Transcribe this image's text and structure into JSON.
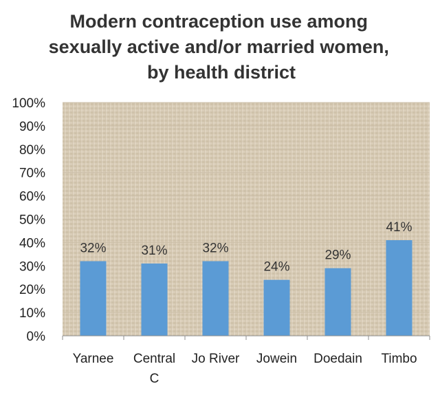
{
  "chart_data": {
    "type": "bar",
    "title_lines": [
      "Modern contraception use among",
      "sexually active and/or married women,",
      "by health district"
    ],
    "categories": [
      [
        "Yarnee"
      ],
      [
        "Central",
        "C"
      ],
      [
        "Jo River"
      ],
      [
        "Jowein"
      ],
      [
        "Doedain"
      ],
      [
        "Timbo"
      ]
    ],
    "values": [
      32,
      31,
      32,
      24,
      29,
      41
    ],
    "data_labels": [
      "32%",
      "31%",
      "32%",
      "24%",
      "29%",
      "41%"
    ],
    "y_ticks": [
      "0%",
      "10%",
      "20%",
      "30%",
      "40%",
      "50%",
      "60%",
      "70%",
      "80%",
      "90%",
      "100%"
    ],
    "ylim": [
      0,
      100
    ],
    "grid": true,
    "legend": "none",
    "colors": {
      "bar": "#5b9bd5",
      "plot_background": "#d9cdb8",
      "gridline": "#c9bca5"
    }
  }
}
